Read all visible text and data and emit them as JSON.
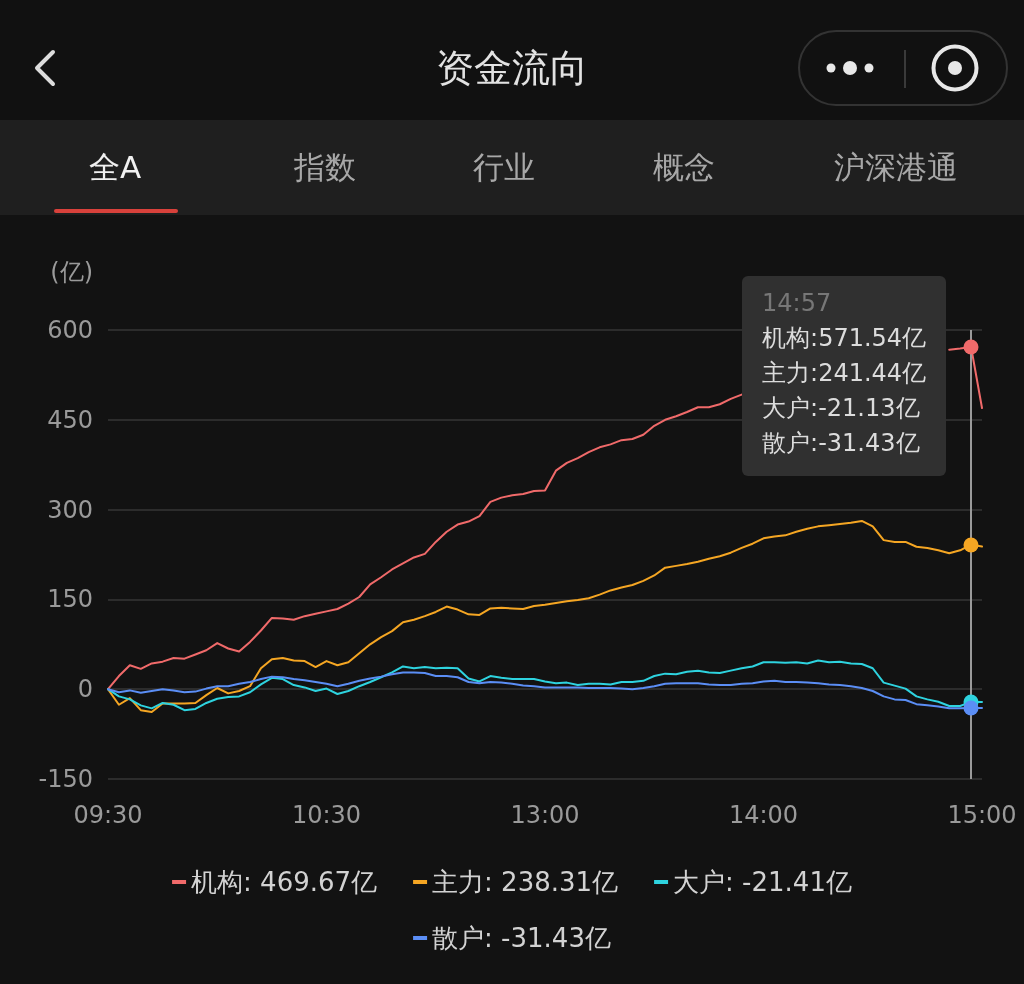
{
  "chart_data": {
    "type": "line",
    "title": "资金流向",
    "ylabel": "(亿)",
    "annotations": [
      "全A",
      "指数",
      "行业",
      "概念",
      "沪深港通",
      "14:57",
      "机构:571.54亿",
      "主力:241.44亿",
      "大户:-21.13亿",
      "散户:-31.43亿"
    ],
    "categories": [
      "09:30",
      null,
      null,
      null,
      null,
      null,
      null,
      null,
      null,
      null,
      null,
      null,
      null,
      null,
      null,
      null,
      null,
      null,
      null,
      null,
      "10:30",
      null,
      null,
      null,
      null,
      null,
      null,
      null,
      null,
      null,
      null,
      null,
      null,
      null,
      null,
      null,
      null,
      null,
      null,
      null,
      "13:00",
      null,
      null,
      null,
      null,
      null,
      null,
      null,
      null,
      null,
      null,
      null,
      null,
      null,
      null,
      null,
      null,
      null,
      null,
      null,
      "14:00",
      null,
      null,
      null,
      null,
      null,
      null,
      null,
      null,
      null,
      null,
      null,
      null,
      null,
      null,
      null,
      null,
      null,
      null,
      null,
      "15:00"
    ],
    "series": [
      {
        "name": "机构: 469.67亿",
        "color": "#f06a6a",
        "values": [
          0,
          22,
          40,
          34,
          43,
          46,
          52,
          51,
          58,
          65,
          77,
          68,
          63,
          79,
          98,
          119,
          118,
          116,
          122,
          126,
          130,
          134,
          143,
          154,
          175,
          187,
          200,
          210,
          220,
          226,
          246,
          263,
          275,
          280,
          289,
          313,
          320,
          324,
          326,
          331,
          332,
          365,
          378,
          386,
          396,
          404,
          409,
          416,
          418,
          425,
          440,
          450,
          456,
          463,
          471,
          471,
          476,
          485,
          492,
          null,
          null,
          null,
          null,
          null,
          null,
          null,
          null,
          null,
          null,
          null,
          null,
          null,
          null,
          null,
          null,
          null,
          null,
          567,
          569,
          571.54,
          469.67
        ]
      },
      {
        "name": "主力: 238.31亿",
        "color": "#f5a623",
        "values": [
          0,
          -26,
          -15,
          -35,
          -38,
          -24,
          -24,
          -24,
          -23,
          -10,
          2,
          -7,
          -3,
          5,
          35,
          50,
          52,
          48,
          47,
          37,
          47,
          40,
          45,
          60,
          75,
          87,
          97,
          112,
          116,
          122,
          129,
          138,
          133,
          125,
          124,
          135,
          136,
          135,
          134,
          139,
          141,
          144,
          147,
          149,
          152,
          158,
          165,
          170,
          174,
          181,
          190,
          203,
          206,
          209,
          213,
          218,
          222,
          228,
          236,
          243,
          252,
          255,
          257,
          263,
          268,
          272,
          274,
          276,
          278,
          281,
          272,
          249,
          246,
          246,
          238,
          236,
          232,
          227,
          232,
          241.44,
          238.31
        ]
      },
      {
        "name": "大户: -21.41亿",
        "color": "#2ed3df",
        "values": [
          0,
          -12,
          -17,
          -27,
          -32,
          -23,
          -26,
          -35,
          -33,
          -23,
          -16,
          -13,
          -12,
          -5,
          8,
          19,
          17,
          7,
          3,
          -3,
          1,
          -8,
          -3,
          5,
          12,
          20,
          28,
          38,
          35,
          37,
          35,
          36,
          35,
          18,
          13,
          22,
          19,
          17,
          17,
          17,
          13,
          10,
          11,
          7,
          9,
          9,
          8,
          12,
          12,
          14,
          22,
          26,
          25,
          29,
          31,
          28,
          27,
          31,
          35,
          38,
          45,
          45,
          44,
          45,
          43,
          48,
          45,
          46,
          43,
          42,
          35,
          11,
          6,
          1,
          -12,
          -17,
          -21,
          -28,
          -28,
          -21.13,
          -21.41
        ]
      },
      {
        "name": "散户: -31.43亿",
        "color": "#5b8ef5",
        "values": [
          0,
          -5,
          -2,
          -6,
          -3,
          0,
          -2,
          -5,
          -4,
          1,
          5,
          5,
          9,
          12,
          17,
          21,
          20,
          17,
          15,
          12,
          9,
          5,
          9,
          14,
          18,
          21,
          25,
          28,
          28,
          27,
          22,
          22,
          20,
          12,
          10,
          12,
          11,
          9,
          6,
          5,
          3,
          3,
          3,
          3,
          2,
          2,
          2,
          1,
          0,
          2,
          5,
          9,
          10,
          10,
          10,
          8,
          7,
          7,
          9,
          10,
          13,
          14,
          12,
          12,
          11,
          10,
          8,
          7,
          5,
          2,
          -3,
          -12,
          -17,
          -18,
          -25,
          -27,
          -29,
          -32,
          -32,
          -31.43,
          -31.43
        ]
      }
    ],
    "ylim": [
      -150,
      600
    ],
    "yticks": [
      -150,
      0,
      150,
      300,
      450,
      600
    ],
    "grid": "y",
    "legend": "bottom",
    "marker": "none"
  }
}
